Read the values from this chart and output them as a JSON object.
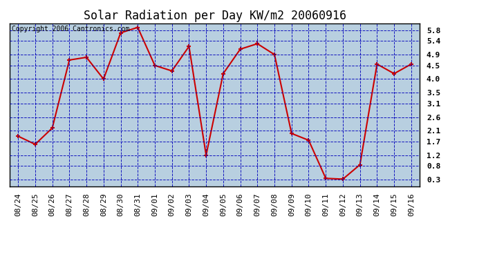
{
  "title": "Solar Radiation per Day KW/m2 20060916",
  "copyright_text": "Copyright 2006 Cantronics.com",
  "dates": [
    "08/24",
    "08/25",
    "08/26",
    "08/27",
    "08/28",
    "08/29",
    "08/30",
    "08/31",
    "09/01",
    "09/02",
    "09/03",
    "09/04",
    "09/05",
    "09/06",
    "09/07",
    "09/08",
    "09/09",
    "09/10",
    "09/11",
    "09/12",
    "09/13",
    "09/14",
    "09/15",
    "09/16"
  ],
  "values": [
    1.9,
    1.6,
    2.2,
    4.7,
    4.8,
    4.0,
    5.7,
    5.9,
    4.5,
    4.3,
    5.2,
    1.2,
    4.2,
    5.1,
    5.3,
    4.9,
    2.0,
    1.75,
    0.35,
    0.32,
    0.85,
    4.55,
    4.2,
    4.55
  ],
  "line_color": "#cc0000",
  "marker": "+",
  "marker_color": "#cc0000",
  "bg_color": "#ffffff",
  "plot_bg_color": "#b8cfe0",
  "grid_color": "#0000bb",
  "yticks": [
    0.3,
    0.8,
    1.2,
    1.7,
    2.1,
    2.6,
    3.1,
    3.5,
    4.0,
    4.5,
    4.9,
    5.4,
    5.8
  ],
  "ylim": [
    0.05,
    6.05
  ],
  "title_fontsize": 12,
  "copyright_fontsize": 7,
  "tick_fontsize": 8,
  "border_color": "#000000",
  "yaxis_right": true
}
